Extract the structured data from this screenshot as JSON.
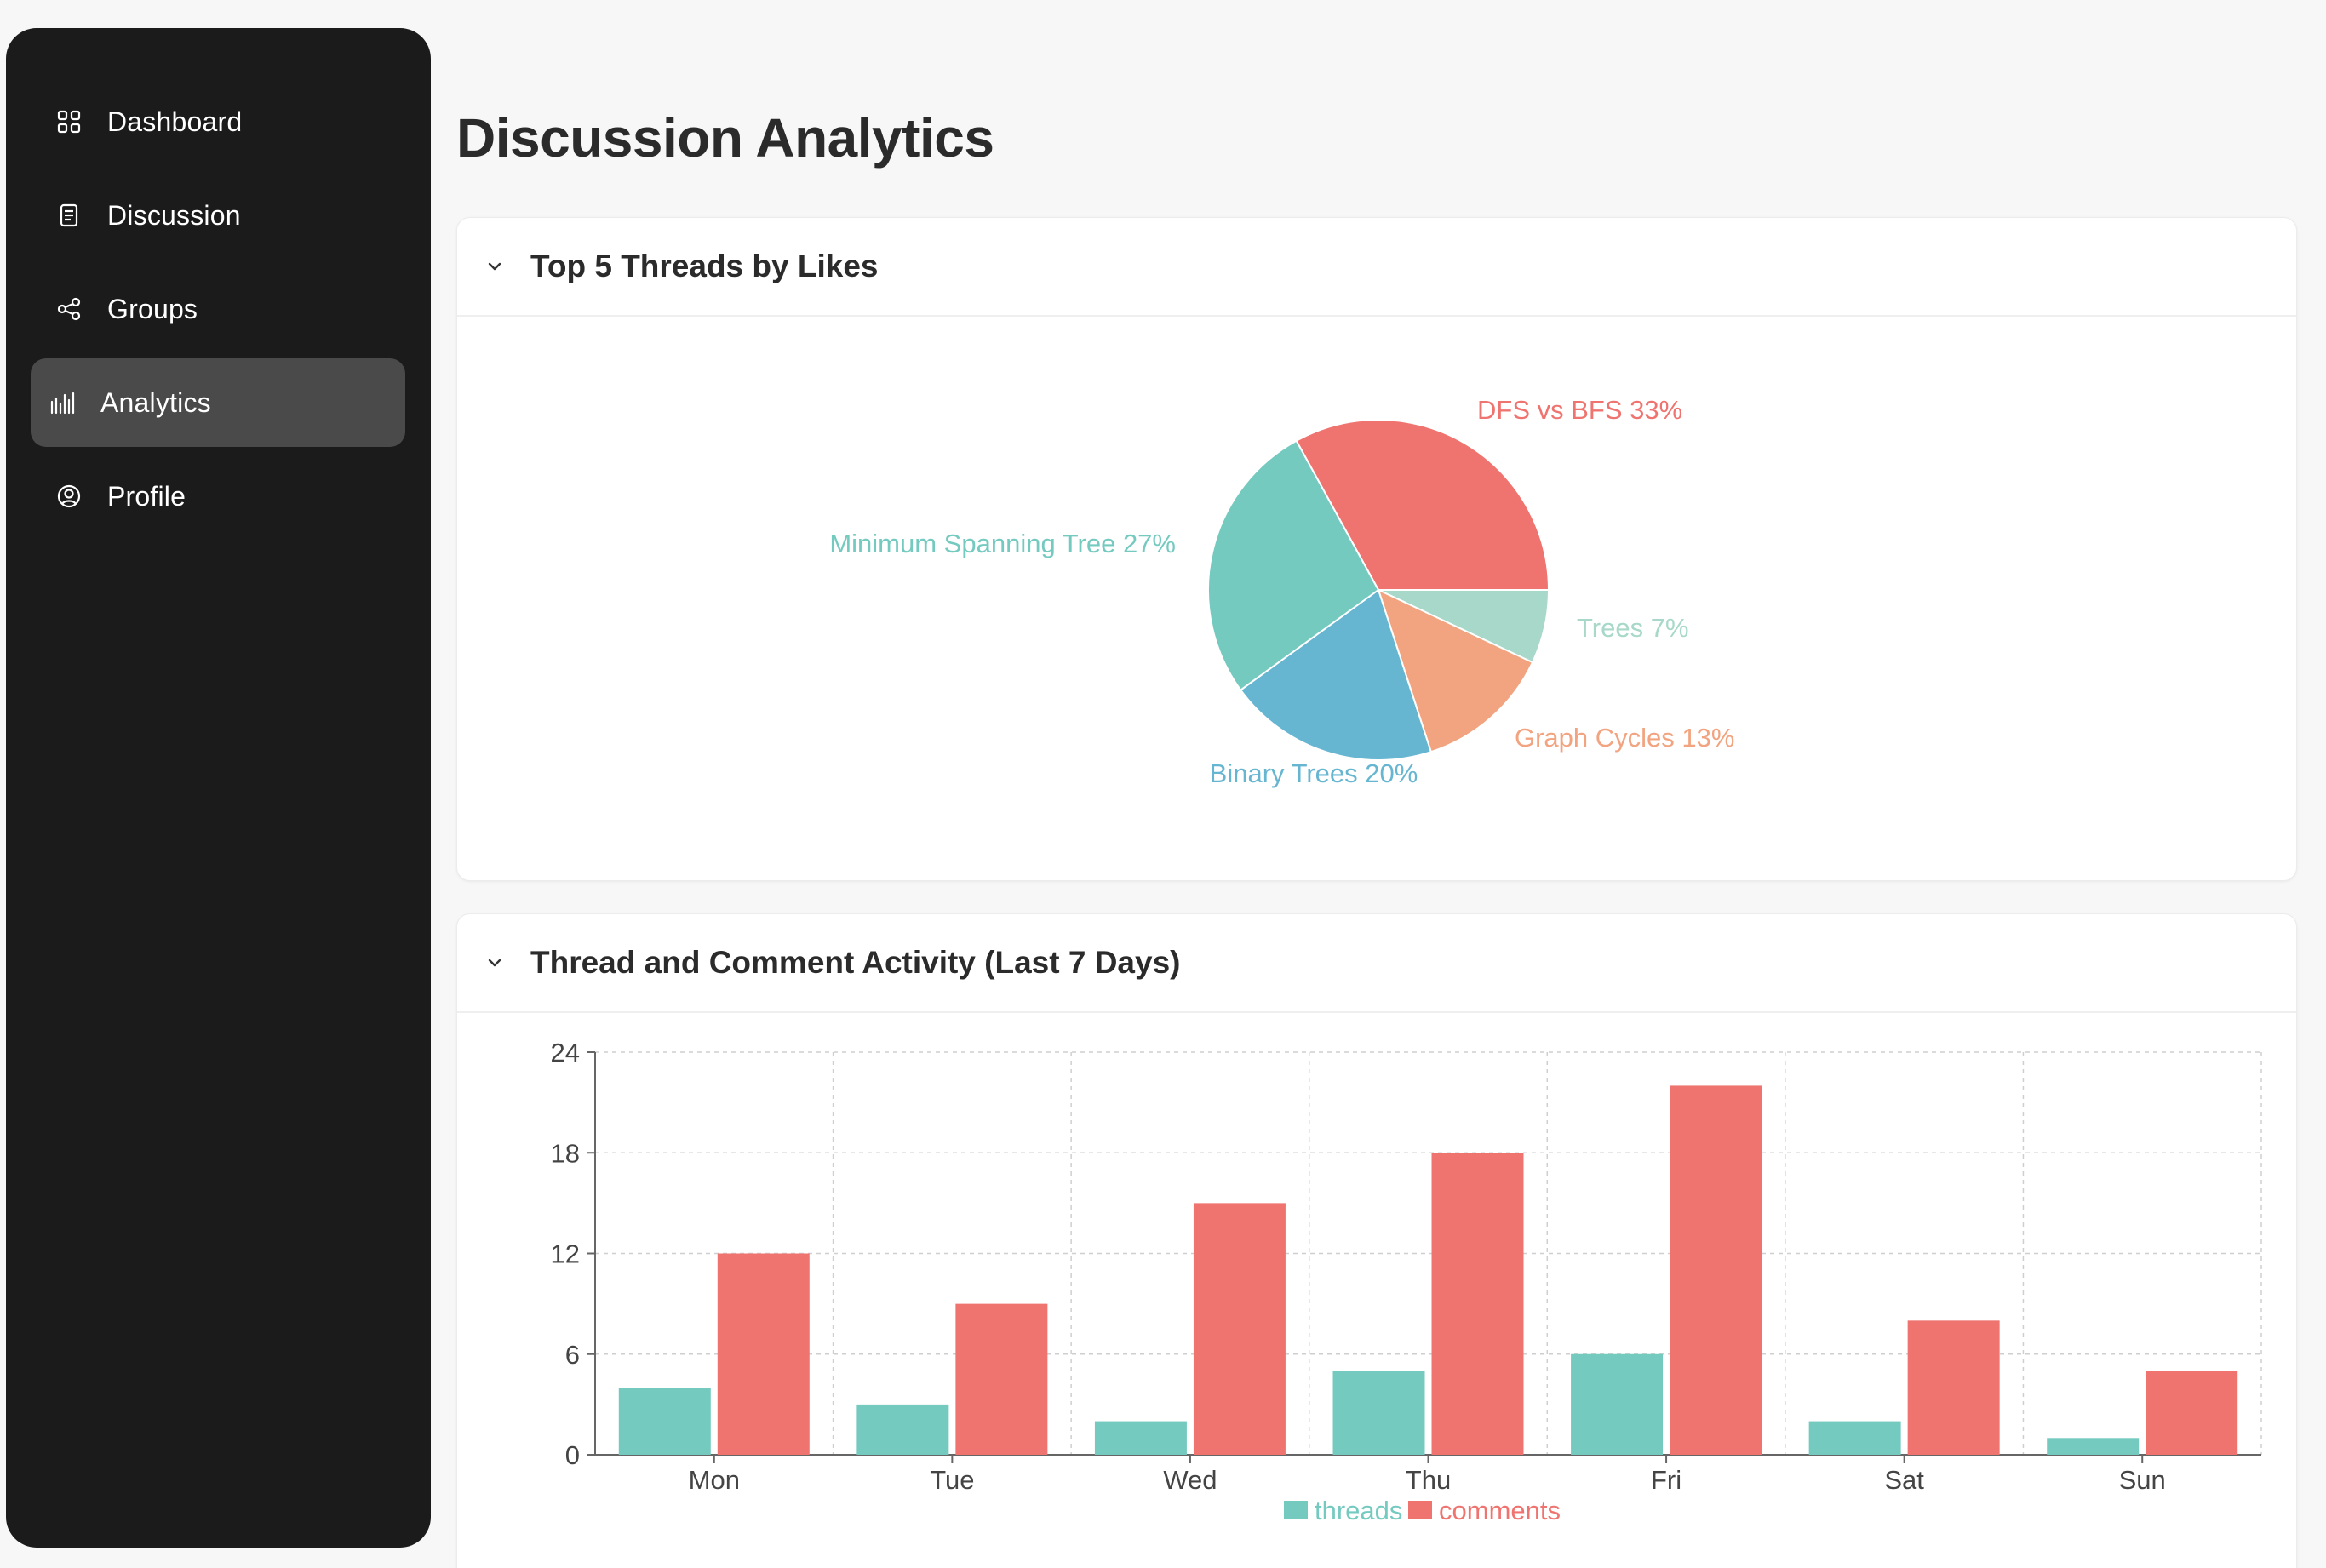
{
  "sidebar": {
    "items": [
      {
        "label": "Dashboard",
        "icon": "grid-icon",
        "active": false
      },
      {
        "label": "Discussion",
        "icon": "document-icon",
        "active": false
      },
      {
        "label": "Groups",
        "icon": "share-icon",
        "active": false
      },
      {
        "label": "Analytics",
        "icon": "bar-chart-icon",
        "active": true
      },
      {
        "label": "Profile",
        "icon": "user-circle-icon",
        "active": false
      }
    ]
  },
  "page": {
    "title": "Discussion Analytics"
  },
  "pie_card": {
    "title": "Top 5 Threads by Likes"
  },
  "bar_card": {
    "title": "Thread and Comment Activity (Last 7 Days)"
  },
  "chart_data": [
    {
      "type": "pie",
      "title": "Top 5 Threads by Likes",
      "slices": [
        {
          "label": "DFS vs BFS",
          "value": 33,
          "percent_label": "33%",
          "color": "#ef7470"
        },
        {
          "label": "Trees",
          "value": 7,
          "percent_label": "7%",
          "color": "#a7d8c9"
        },
        {
          "label": "Graph Cycles",
          "value": 13,
          "percent_label": "13%",
          "color": "#f2a37f"
        },
        {
          "label": "Binary Trees",
          "value": 20,
          "percent_label": "20%",
          "color": "#66b5d1"
        },
        {
          "label": "Minimum Spanning Tree",
          "value": 27,
          "percent_label": "27%",
          "color": "#75cac0"
        }
      ]
    },
    {
      "type": "bar",
      "title": "Thread and Comment Activity (Last 7 Days)",
      "categories": [
        "Mon",
        "Tue",
        "Wed",
        "Thu",
        "Fri",
        "Sat",
        "Sun"
      ],
      "series": [
        {
          "name": "threads",
          "values": [
            4,
            3,
            2,
            5,
            6,
            2,
            1
          ],
          "color": "#75cac0"
        },
        {
          "name": "comments",
          "values": [
            12,
            9,
            15,
            18,
            22,
            8,
            5
          ],
          "color": "#ef7470"
        }
      ],
      "ylim": [
        0,
        24
      ],
      "yticks": [
        "0",
        "6",
        "12",
        "18",
        "24"
      ],
      "grid": true,
      "legend_position": "bottom-center"
    }
  ]
}
